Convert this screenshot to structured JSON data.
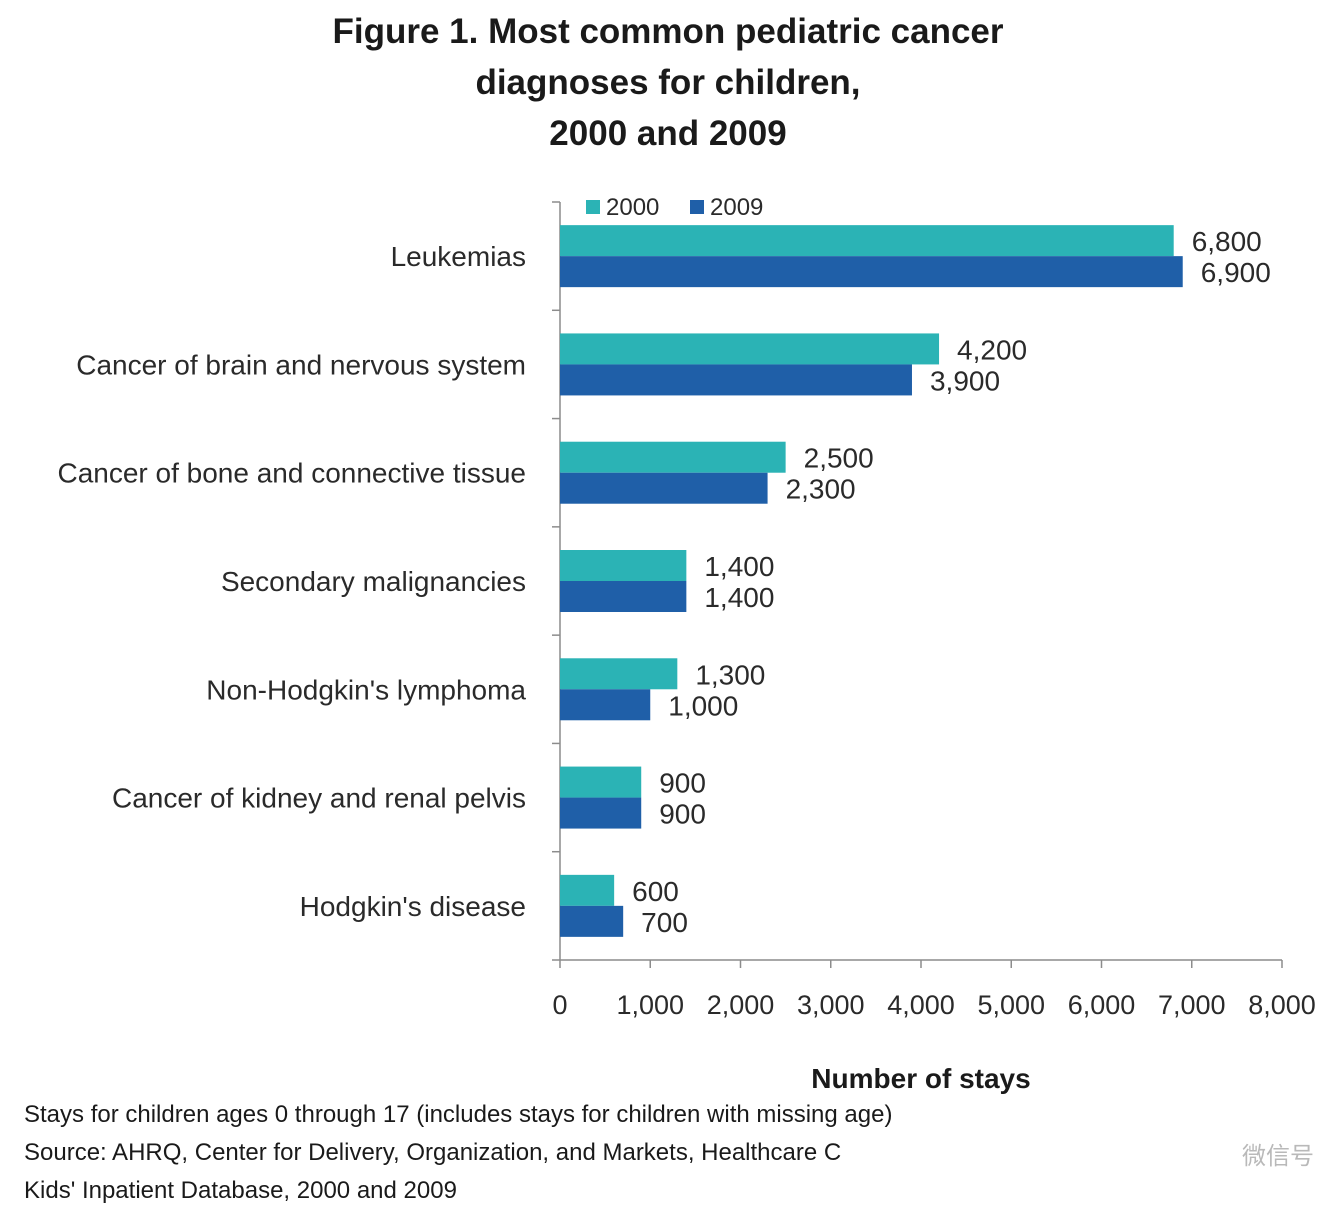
{
  "chart_data": {
    "type": "bar",
    "orientation": "horizontal",
    "title_lines": [
      "Figure 1. Most common pediatric cancer",
      "diagnoses for children,",
      "2000 and 2009"
    ],
    "categories": [
      "Leukemias",
      "Cancer of brain and nervous system",
      "Cancer of bone and connective tissue",
      "Secondary malignancies",
      "Non-Hodgkin's lymphoma",
      "Cancer of kidney and renal pelvis",
      "Hodgkin's disease"
    ],
    "series": [
      {
        "name": "2000",
        "color": "#2bb3b5",
        "values": [
          6800,
          4200,
          2500,
          1400,
          1300,
          900,
          600
        ],
        "labels": [
          "6,800",
          "4,200",
          "2,500",
          "1,400",
          "1,300",
          "900",
          "600"
        ]
      },
      {
        "name": "2009",
        "color": "#1f5fa8",
        "values": [
          6900,
          3900,
          2300,
          1400,
          1000,
          900,
          700
        ],
        "labels": [
          "6,900",
          "3,900",
          "2,300",
          "1,400",
          "1,000",
          "900",
          "700"
        ]
      }
    ],
    "xlim": [
      0,
      8000
    ],
    "xticks": [
      0,
      1000,
      2000,
      3000,
      4000,
      5000,
      6000,
      7000,
      8000
    ],
    "xtick_labels": [
      "0",
      "1,000",
      "2,000",
      "3,000",
      "4,000",
      "5,000",
      "6,000",
      "7,000",
      "8,000"
    ],
    "xlabel": "Number of stays",
    "legend_position": "top",
    "grid": false
  },
  "footnotes": {
    "line1": "Stays for children ages  0 through 17 (includes stays for children with missing age)",
    "line2": "Source: AHRQ, Center for Delivery, Organization, and Markets, Healthcare C",
    "line3": "Kids' Inpatient Database, 2000 and 2009"
  },
  "watermark": "微信号"
}
